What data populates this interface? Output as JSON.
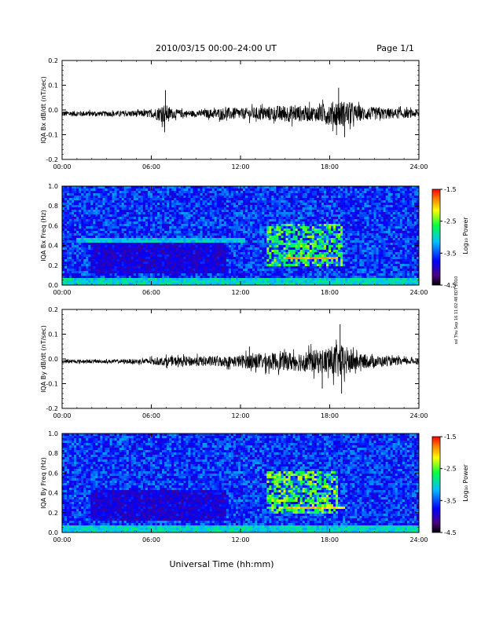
{
  "header": {
    "title": "2010/03/15  00:00–24:00 UT",
    "page": "Page 1/1"
  },
  "side_note": "ssl Thu Sep 16 11:02:48 EDT 2010",
  "chart_data": [
    {
      "type": "line",
      "ylabel": "IQA Bx dB/dt (nT/sec)",
      "xlim": [
        0,
        24
      ],
      "ylim": [
        -0.2,
        0.2
      ],
      "x_ticks": [
        "00:00",
        "06:00",
        "12:00",
        "18:00",
        "24:00"
      ],
      "y_ticks": [
        "0.2",
        "0.1",
        "0.0",
        "-0.1",
        "-0.2"
      ],
      "baseline": -0.015,
      "amplitude_envelope": {
        "x": [
          0,
          3,
          6,
          6.9,
          7.5,
          9,
          11,
          12,
          13.5,
          15,
          17,
          18.5,
          19.2,
          20,
          22,
          24
        ],
        "y": [
          0.012,
          0.01,
          0.015,
          0.04,
          0.018,
          0.012,
          0.025,
          0.022,
          0.028,
          0.035,
          0.03,
          0.055,
          0.05,
          0.03,
          0.022,
          0.015
        ]
      },
      "spikes": [
        {
          "x": 6.95,
          "y": 0.08
        },
        {
          "x": 6.9,
          "y": -0.09
        },
        {
          "x": 18.6,
          "y": 0.09
        },
        {
          "x": 19.0,
          "y": -0.11
        }
      ]
    },
    {
      "type": "heatmap",
      "ylabel": "IQA Bx Freq (Hz)",
      "xlim": [
        0,
        24
      ],
      "ylim": [
        0,
        1.0
      ],
      "x_ticks": [
        "00:00",
        "06:00",
        "12:00",
        "18:00",
        "24:00"
      ],
      "y_ticks": [
        "1.0",
        "0.8",
        "0.6",
        "0.4",
        "0.2",
        "0.0"
      ],
      "colorbar": {
        "label": "Log₁₀ Power",
        "range": [
          -4.5,
          -1.5
        ],
        "ticks": [
          "-1.5",
          "-2.5",
          "-3.5",
          "-4.5"
        ]
      },
      "features": [
        {
          "kind": "band",
          "t_start": 1.0,
          "t_end": 12.3,
          "f_center": 0.45,
          "level": -3.1
        },
        {
          "kind": "block",
          "t_start": 2.0,
          "t_end": 11.0,
          "f_low": 0.12,
          "f_high": 0.42,
          "level": -4.1
        },
        {
          "kind": "burst",
          "t_start": 13.8,
          "t_end": 18.8,
          "f_low": 0.2,
          "f_high": 0.62,
          "level": -2.6
        },
        {
          "kind": "line",
          "t_start": 15.0,
          "t_end": 18.5,
          "f_center": 0.27,
          "level": -1.9
        },
        {
          "kind": "lowfreq",
          "t_start": 0,
          "t_end": 24,
          "f_high": 0.08,
          "level": -3.0
        }
      ]
    },
    {
      "type": "line",
      "ylabel": "IQA By dB/dt (nT/sec)",
      "xlim": [
        0,
        24
      ],
      "ylim": [
        -0.2,
        0.2
      ],
      "x_ticks": [
        "00:00",
        "06:00",
        "12:00",
        "18:00",
        "24:00"
      ],
      "y_ticks": [
        "0.2",
        "0.1",
        "0.0",
        "-0.1",
        "-0.2"
      ],
      "baseline": -0.01,
      "amplitude_envelope": {
        "x": [
          0,
          3,
          5,
          7,
          9,
          11.5,
          12.5,
          14,
          16,
          17.5,
          18.6,
          19.3,
          20,
          22,
          24
        ],
        "y": [
          0.008,
          0.007,
          0.01,
          0.018,
          0.02,
          0.022,
          0.03,
          0.035,
          0.04,
          0.05,
          0.07,
          0.055,
          0.03,
          0.018,
          0.01
        ]
      },
      "spikes": [
        {
          "x": 12.6,
          "y": 0.05
        },
        {
          "x": 18.7,
          "y": 0.14
        },
        {
          "x": 18.8,
          "y": -0.14
        },
        {
          "x": 17.5,
          "y": -0.12
        }
      ]
    },
    {
      "type": "heatmap",
      "ylabel": "IQA By Freq (Hz)",
      "xlim": [
        0,
        24
      ],
      "ylim": [
        0,
        1.0
      ],
      "x_ticks": [
        "00:00",
        "06:00",
        "12:00",
        "18:00",
        "24:00"
      ],
      "y_ticks": [
        "1.0",
        "0.8",
        "0.6",
        "0.4",
        "0.2",
        "0.0"
      ],
      "xlabel": "Universal Time (hh:mm)",
      "colorbar": {
        "label": "Log₁₀ Power",
        "range": [
          -4.5,
          -1.5
        ],
        "ticks": [
          "-1.5",
          "-2.5",
          "-3.5",
          "-4.5"
        ]
      },
      "features": [
        {
          "kind": "band",
          "t_start": 1.0,
          "t_end": 12.0,
          "f_center": 0.4,
          "level": -3.7
        },
        {
          "kind": "block",
          "t_start": 2.0,
          "t_end": 11.0,
          "f_low": 0.12,
          "f_high": 0.42,
          "level": -4.1
        },
        {
          "kind": "burst",
          "t_start": 13.8,
          "t_end": 18.5,
          "f_low": 0.2,
          "f_high": 0.62,
          "level": -2.5
        },
        {
          "kind": "line",
          "t_start": 15.0,
          "t_end": 19.0,
          "f_center": 0.25,
          "level": -2.0
        },
        {
          "kind": "lowfreq",
          "t_start": 0,
          "t_end": 24,
          "f_high": 0.08,
          "level": -3.0
        }
      ]
    }
  ]
}
